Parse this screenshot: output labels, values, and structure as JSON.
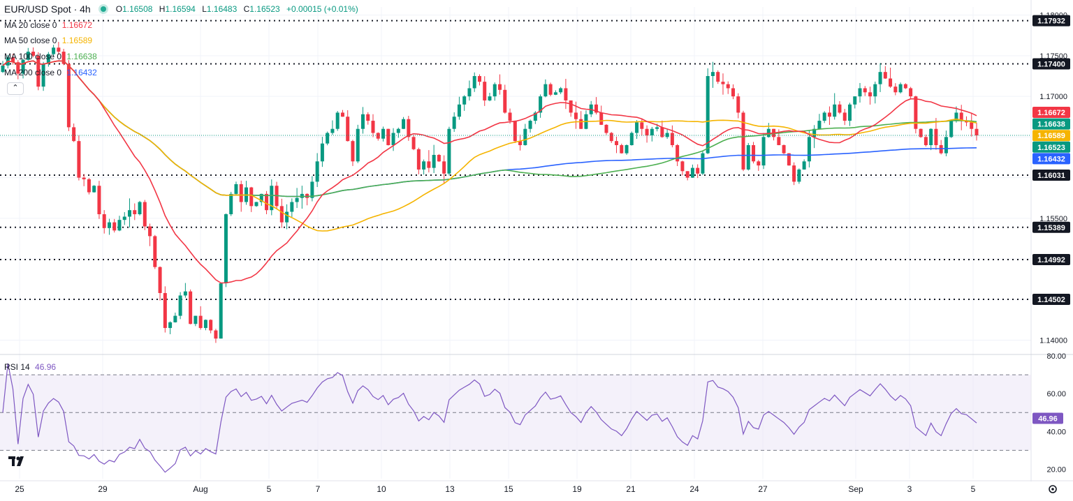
{
  "header": {
    "symbol": "EUR/USD Spot · 4h",
    "o_label": "O",
    "o": "1.16508",
    "h_label": "H",
    "h": "1.16594",
    "l_label": "L",
    "l": "1.16483",
    "c_label": "C",
    "c": "1.16523",
    "change": "+0.00015 (+0.01%)"
  },
  "legend": [
    {
      "label": "MA 20 close 0",
      "value": "1.16672",
      "color": "#f23645"
    },
    {
      "label": "MA 50 close 0",
      "value": "1.16589",
      "color": "#f5b400"
    },
    {
      "label": "MA 100 close 0",
      "value": "1.16638",
      "color": "#4caf50"
    },
    {
      "label": "MA 200 close 0",
      "value": "1.16432",
      "color": "#2962ff"
    }
  ],
  "rsi_legend": {
    "label": "RSI 14",
    "value": "46.96",
    "color": "#7e57c2"
  },
  "collapse_icon": "chevron-up-icon",
  "colors": {
    "up": "#089981",
    "down": "#f23645",
    "rsi": "#7e57c2",
    "band": "#ede7f6",
    "grid": "#f0f3fa"
  },
  "chart_data": {
    "type": "candlestick",
    "title": "EUR/USD Spot · 4h",
    "ylim": [
      1.1385,
      1.181
    ],
    "y_ticks": [
      "1.18000",
      "1.17500",
      "1.17000",
      "1.16500",
      "1.16000",
      "1.15500",
      "1.15000",
      "1.14500",
      "1.14000"
    ],
    "x_labels": [
      "25",
      "29",
      "Aug",
      "5",
      "7",
      "10",
      "13",
      "15",
      "19",
      "21",
      "24",
      "27",
      "Sep",
      "3",
      "5"
    ],
    "levels": [
      "1.17932",
      "1.17400",
      "1.16031",
      "1.15389",
      "1.14992",
      "1.14502"
    ],
    "price_tags": [
      {
        "value": "1.16672",
        "color": "#f23645"
      },
      {
        "value": "1.16638",
        "color": "#089981"
      },
      {
        "value": "1.16589",
        "color": "#f5b400"
      },
      {
        "value": "1.16523",
        "color": "#089981"
      },
      {
        "value": "1.16432",
        "color": "#2962ff"
      }
    ],
    "closes": [
      1.1738,
      1.1748,
      1.1742,
      1.1728,
      1.1745,
      1.1755,
      1.175,
      1.1712,
      1.174,
      1.1752,
      1.176,
      1.1755,
      1.174,
      1.1662,
      1.1645,
      1.16,
      1.1598,
      1.1582,
      1.159,
      1.1555,
      1.1538,
      1.1545,
      1.1535,
      1.1548,
      1.1552,
      1.156,
      1.1555,
      1.157,
      1.154,
      1.1528,
      1.149,
      1.1458,
      1.1415,
      1.1422,
      1.143,
      1.1455,
      1.146,
      1.142,
      1.143,
      1.1415,
      1.1425,
      1.1412,
      1.1402,
      1.147,
      1.1555,
      1.158,
      1.1592,
      1.157,
      1.1588,
      1.1565,
      1.157,
      1.158,
      1.156,
      1.159,
      1.1565,
      1.1545,
      1.1558,
      1.157,
      1.1575,
      1.158,
      1.1575,
      1.1595,
      1.162,
      1.1642,
      1.1655,
      1.166,
      1.168,
      1.1675,
      1.1645,
      1.162,
      1.166,
      1.1678,
      1.167,
      1.1655,
      1.1648,
      1.166,
      1.164,
      1.1655,
      1.166,
      1.1672,
      1.165,
      1.1635,
      1.161,
      1.162,
      1.1612,
      1.1628,
      1.162,
      1.1605,
      1.166,
      1.1675,
      1.169,
      1.17,
      1.171,
      1.1725,
      1.1718,
      1.1695,
      1.17,
      1.1715,
      1.1708,
      1.168,
      1.167,
      1.1645,
      1.164,
      1.166,
      1.167,
      1.168,
      1.17,
      1.1715,
      1.1702,
      1.1705,
      1.171,
      1.1695,
      1.168,
      1.1672,
      1.166,
      1.1678,
      1.169,
      1.168,
      1.1665,
      1.1655,
      1.1645,
      1.164,
      1.163,
      1.164,
      1.1655,
      1.1668,
      1.166,
      1.1652,
      1.166,
      1.1662,
      1.165,
      1.1655,
      1.164,
      1.162,
      1.1608,
      1.16,
      1.1612,
      1.1605,
      1.163,
      1.1725,
      1.173,
      1.1718,
      1.1715,
      1.171,
      1.17,
      1.168,
      1.161,
      1.164,
      1.162,
      1.1615,
      1.165,
      1.166,
      1.165,
      1.164,
      1.163,
      1.1615,
      1.1595,
      1.161,
      1.162,
      1.165,
      1.166,
      1.167,
      1.168,
      1.1675,
      1.169,
      1.168,
      1.167,
      1.169,
      1.17,
      1.171,
      1.1705,
      1.17,
      1.1715,
      1.173,
      1.1722,
      1.1712,
      1.1705,
      1.1715,
      1.171,
      1.17,
      1.166,
      1.165,
      1.164,
      1.166,
      1.164,
      1.163,
      1.165,
      1.167,
      1.168,
      1.167,
      1.1668,
      1.166,
      1.1652
    ],
    "rsi": {
      "ylim": [
        15,
        80
      ],
      "ticks": [
        "80.00",
        "60.00",
        "40.00",
        "20.00"
      ],
      "band": [
        30,
        70
      ],
      "mid": 50,
      "last": "46.96"
    }
  }
}
